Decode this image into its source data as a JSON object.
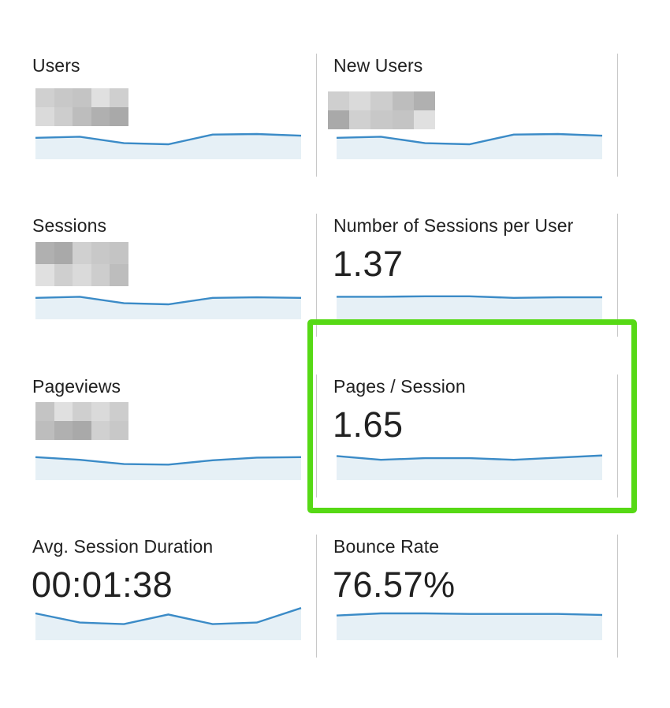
{
  "cards": [
    {
      "label": "Users",
      "value": "",
      "blurred": true,
      "trend": [
        0.4,
        0.42,
        0.3,
        0.28,
        0.46,
        0.47,
        0.44
      ]
    },
    {
      "label": "New Users",
      "value": "",
      "blurred": true,
      "trend": [
        0.4,
        0.42,
        0.3,
        0.28,
        0.46,
        0.47,
        0.44
      ]
    },
    {
      "label": "Sessions",
      "value": "",
      "blurred": true,
      "trend": [
        0.4,
        0.42,
        0.3,
        0.28,
        0.4,
        0.41,
        0.4
      ]
    },
    {
      "label": "Number of Sessions per User",
      "value": "1.37",
      "blurred": false,
      "trend": [
        0.42,
        0.42,
        0.43,
        0.43,
        0.4,
        0.41,
        0.41
      ]
    },
    {
      "label": "Pageviews",
      "value": "",
      "blurred": true,
      "trend": [
        0.43,
        0.38,
        0.3,
        0.29,
        0.37,
        0.42,
        0.43
      ]
    },
    {
      "label": "Pages / Session",
      "value": "1.65",
      "blurred": false,
      "trend": [
        0.45,
        0.38,
        0.41,
        0.41,
        0.38,
        0.42,
        0.46
      ]
    },
    {
      "label": "Avg. Session Duration",
      "value": "00:01:38",
      "blurred": false,
      "trend": [
        0.5,
        0.33,
        0.3,
        0.48,
        0.3,
        0.33,
        0.6
      ]
    },
    {
      "label": "Bounce Rate",
      "value": "76.57%",
      "blurred": false,
      "trend": [
        0.46,
        0.5,
        0.5,
        0.49,
        0.49,
        0.49,
        0.47
      ]
    }
  ],
  "highlighted_card": "Pages / Session",
  "colors": {
    "line": "#3b8bc7",
    "fill": "#e6f0f6",
    "highlight": "#56d915",
    "separator": "#c8c8c8"
  }
}
